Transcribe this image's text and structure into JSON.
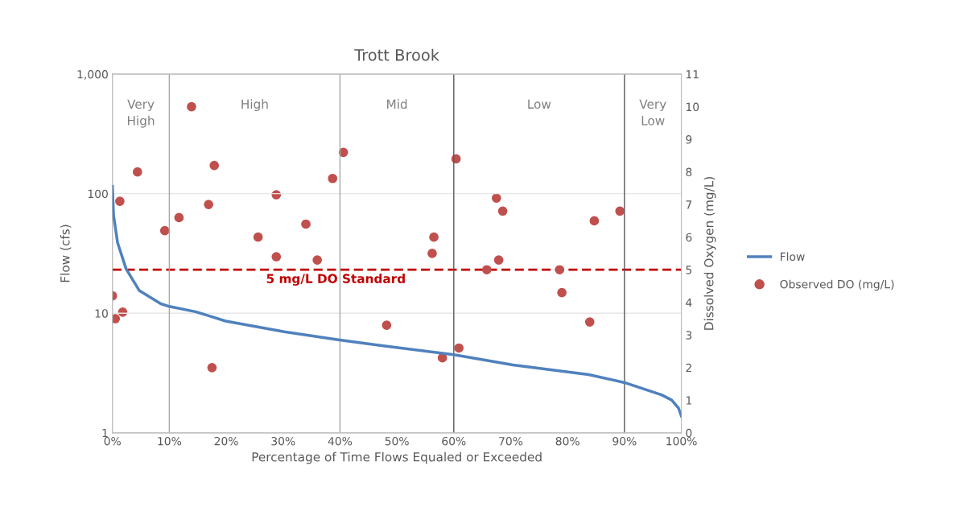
{
  "chart_data": {
    "type": "line",
    "title": "Trott Brook",
    "xlabel": "Percentage of Time Flows Equaled or Exceeded",
    "ylabel": "Flow (cfs)",
    "y2label": "Dissolved Oxygen (mg/L)",
    "series": [
      {
        "name": "Flow",
        "color": "#4f81bd",
        "marker": "none",
        "x": [
          0,
          0.2,
          0.9,
          2.4,
          4.7,
          8.5,
          10,
          14.6,
          19.9,
          30.2,
          39.7,
          46.8,
          60,
          70.4,
          83.7,
          90,
          96.5,
          98.3,
          99.5,
          100
        ],
        "values": [
          115,
          66,
          39,
          23.5,
          15.5,
          12,
          11.4,
          10.3,
          8.6,
          7.0,
          6.0,
          5.4,
          4.5,
          3.7,
          3.07,
          2.63,
          2.08,
          1.88,
          1.61,
          1.38
        ]
      },
      {
        "name": "Observed DO (mg/L)",
        "type": "scatter",
        "axis": "y2",
        "color": "#c0504d",
        "marker": "circle",
        "x": [
          0,
          0.5,
          1.8,
          1.3,
          4.4,
          9.2,
          11.7,
          13.9,
          17.9,
          16.9,
          17.5,
          25.6,
          28.8,
          28.8,
          34.0,
          36.0,
          38.7,
          40.6,
          48.2,
          60.4,
          56.5,
          56.2,
          67.5,
          68.6,
          67.9,
          65.8,
          78.6,
          79.0,
          84.7,
          89.2,
          58.0,
          60.9,
          83.9
        ],
        "values": [
          4.2,
          3.5,
          3.7,
          7.1,
          8.0,
          6.2,
          6.6,
          10.0,
          8.2,
          7.0,
          2.0,
          6.0,
          7.3,
          5.4,
          6.4,
          5.3,
          7.8,
          8.6,
          3.3,
          8.4,
          6.0,
          5.5,
          7.2,
          6.8,
          5.3,
          5.0,
          5.0,
          4.3,
          6.5,
          6.8,
          2.3,
          2.6,
          3.4
        ]
      }
    ],
    "xlim": [
      0,
      100
    ],
    "xticks": [
      {
        "value": 0,
        "label": "0%"
      },
      {
        "value": 10,
        "label": "10%"
      },
      {
        "value": 20,
        "label": "20%"
      },
      {
        "value": 30,
        "label": "30%"
      },
      {
        "value": 40,
        "label": "40%"
      },
      {
        "value": 50,
        "label": "50%"
      },
      {
        "value": 60,
        "label": "60%"
      },
      {
        "value": 70,
        "label": "70%"
      },
      {
        "value": 80,
        "label": "80%"
      },
      {
        "value": 90,
        "label": "90%"
      },
      {
        "value": 100,
        "label": "100%"
      }
    ],
    "log": "y",
    "ylim": [
      1,
      1000
    ],
    "yticks": [
      1,
      10,
      100,
      {
        "value": 1000,
        "label": "1,000"
      }
    ],
    "y2lim": [
      0,
      11
    ],
    "y2ticks": [
      0,
      1,
      2,
      3,
      4,
      5,
      6,
      7,
      8,
      9,
      10,
      11
    ],
    "grid": "y",
    "legend": "right",
    "ref_lines": [
      {
        "axis": "x",
        "value": 10,
        "color": "#a6a6a6"
      },
      {
        "axis": "x",
        "value": 40,
        "color": "#a6a6a6"
      },
      {
        "axis": "x",
        "value": 60,
        "color": "#595959"
      },
      {
        "axis": "x",
        "value": 90,
        "color": "#595959"
      },
      {
        "axis": "y2",
        "value": 5,
        "label": "5 mg/L DO Standard",
        "color": "#c00000",
        "line_style": "dashed"
      }
    ],
    "annotations": [
      "Very\nHigh",
      "High",
      "Mid",
      "Low",
      "Very\nLow"
    ]
  }
}
